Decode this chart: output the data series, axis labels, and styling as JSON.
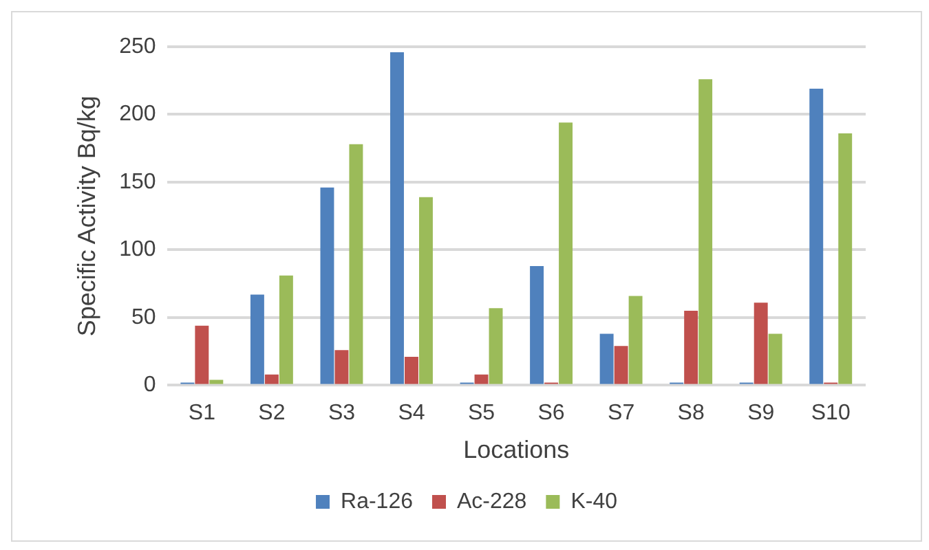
{
  "chart_data": {
    "type": "bar",
    "xlabel": "Locations",
    "ylabel": "Specific Activity Bq/kg",
    "categories": [
      "S1",
      "S2",
      "S3",
      "S4",
      "S5",
      "S6",
      "S7",
      "S8",
      "S9",
      "S10"
    ],
    "series": [
      {
        "name": "Ra-126",
        "color": "#4f81bd",
        "values": [
          2,
          67,
          146,
          246,
          2,
          88,
          38,
          2,
          2,
          219
        ]
      },
      {
        "name": "Ac-228",
        "color": "#c0504d",
        "values": [
          44,
          8,
          26,
          21,
          8,
          2,
          29,
          55,
          61,
          2
        ]
      },
      {
        "name": "K-40",
        "color": "#9bbb59",
        "values": [
          4,
          81,
          178,
          139,
          57,
          194,
          66,
          226,
          38,
          186
        ]
      }
    ],
    "ylim": [
      0,
      250
    ],
    "yticks": [
      0,
      50,
      100,
      150,
      200,
      250
    ],
    "grid": "y",
    "legend": "bottom"
  }
}
